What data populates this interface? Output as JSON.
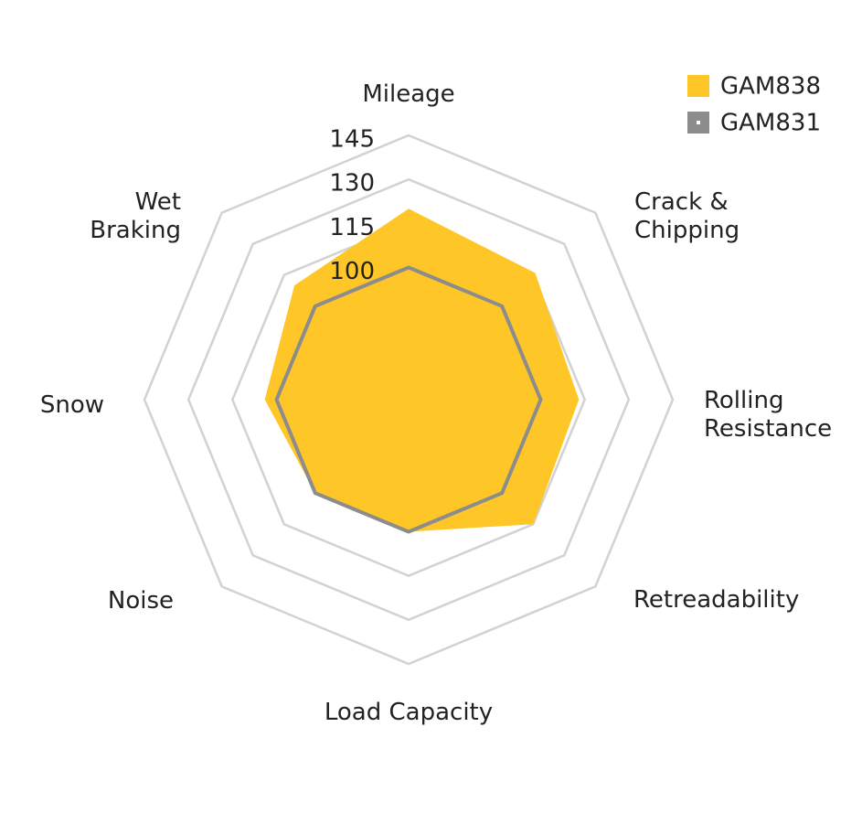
{
  "chart_data": {
    "type": "radar",
    "categories": [
      "Mileage",
      "Crack & Chipping",
      "Rolling Resistance",
      "Retreadability",
      "Load Capacity",
      "Noise",
      "Snow",
      "Wet Braking"
    ],
    "series": [
      {
        "name": "GAM838",
        "color": "#ffc627",
        "values": [
          120,
          116,
          113,
          115,
          100,
          100,
          104,
          110
        ]
      },
      {
        "name": "GAM831",
        "color": "#8c8c8c",
        "values": [
          100,
          100,
          100,
          100,
          100,
          100,
          100,
          100
        ]
      }
    ],
    "ylim": [
      55,
      145
    ],
    "yticks": [
      100,
      115,
      130,
      145
    ],
    "grid": true,
    "legend": "top-right"
  }
}
